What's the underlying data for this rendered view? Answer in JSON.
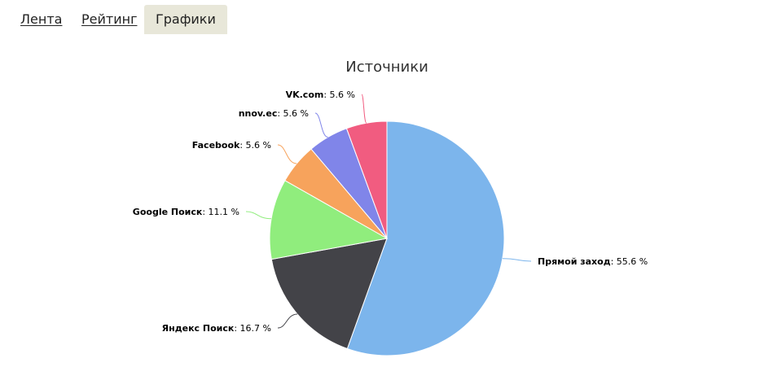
{
  "tabs": [
    {
      "label": "Лента",
      "active": false
    },
    {
      "label": "Рейтинг",
      "active": false
    },
    {
      "label": "Графики",
      "active": true
    }
  ],
  "chart_data": {
    "type": "pie",
    "title": "Источники",
    "legend": "none",
    "unit": "%",
    "slices": [
      {
        "name": "Прямой заход",
        "value": 55.6,
        "label": "55.6 %",
        "color": "#7cb5ec"
      },
      {
        "name": "Яндекс Поиск",
        "value": 16.7,
        "label": "16.7 %",
        "color": "#434348"
      },
      {
        "name": "Google Поиск",
        "value": 11.1,
        "label": "11.1 %",
        "color": "#90ed7d"
      },
      {
        "name": "Facebook",
        "value": 5.6,
        "label": "5.6 %",
        "color": "#f7a35c"
      },
      {
        "name": "nnov.ec",
        "value": 5.6,
        "label": "5.6 %",
        "color": "#8085e9"
      },
      {
        "name": "VK.com",
        "value": 5.6,
        "label": "5.6 %",
        "color": "#f15c80"
      }
    ]
  }
}
